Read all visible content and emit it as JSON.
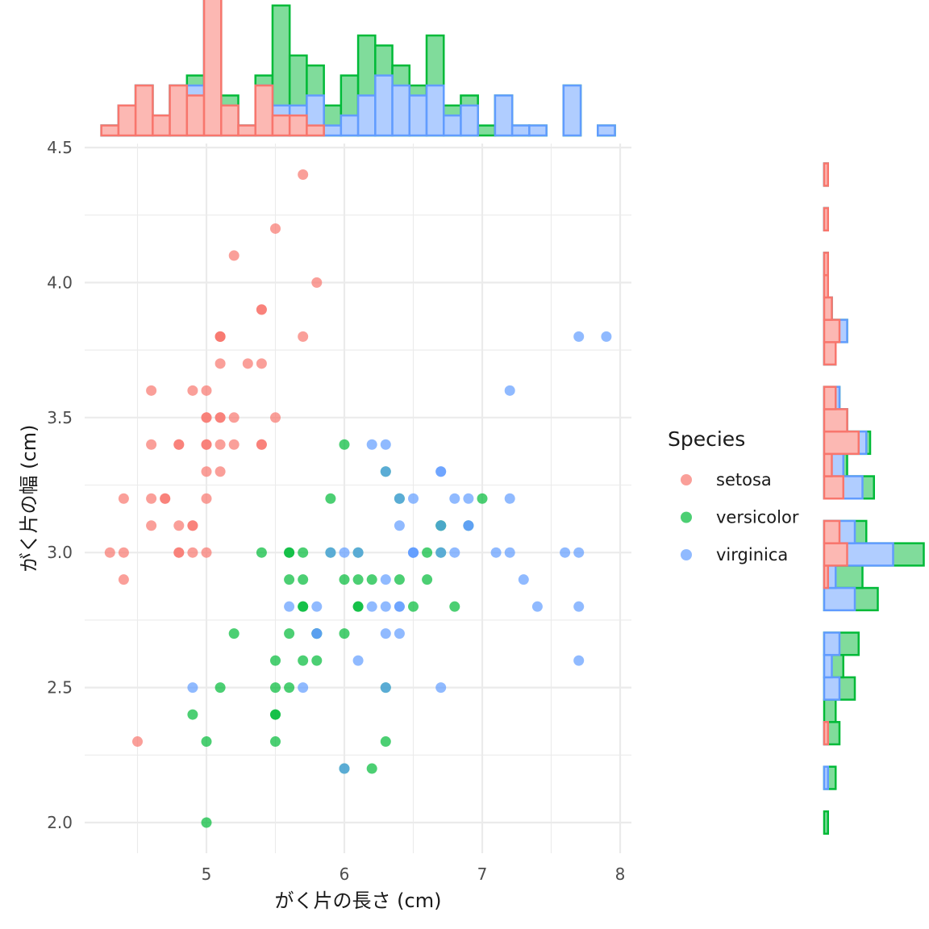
{
  "chart_data": {
    "type": "scatter",
    "subtype": "marginal-histograms",
    "title": "",
    "xlabel": "がく片の長さ (cm)",
    "ylabel": "がく片の幅 (cm)",
    "xlim": [
      4.2,
      8.05
    ],
    "ylim": [
      1.88,
      4.5
    ],
    "x_ticks": [
      5,
      6,
      7,
      8
    ],
    "x_tick_labels": [
      "5",
      "6",
      "7",
      "8"
    ],
    "y_ticks": [
      2.0,
      2.5,
      3.0,
      3.5,
      4.0,
      4.5
    ],
    "y_tick_labels": [
      "2.0",
      "2.5",
      "3.0",
      "3.5",
      "4.0",
      "4.5"
    ],
    "grid": true,
    "legend": {
      "title": "Species",
      "placement": "right",
      "entries": [
        "setosa",
        "versicolor",
        "virginica"
      ]
    },
    "marginal_histograms": {
      "bins": 30,
      "stacked": true,
      "top": "がく片の長さ",
      "right": "がく片の幅"
    },
    "series": [
      {
        "name": "setosa",
        "color": "#F8766D",
        "fill": "#FCB8B3",
        "x": [
          5.1,
          4.9,
          4.7,
          4.6,
          5.0,
          5.4,
          4.6,
          5.0,
          4.4,
          4.9,
          5.4,
          4.8,
          4.8,
          4.3,
          5.8,
          5.7,
          5.4,
          5.1,
          5.7,
          5.1,
          5.4,
          5.1,
          4.6,
          5.1,
          4.8,
          5.0,
          5.0,
          5.2,
          5.2,
          4.7,
          4.8,
          5.4,
          5.2,
          5.5,
          4.9,
          5.0,
          5.5,
          4.9,
          4.4,
          5.1,
          5.0,
          4.5,
          4.4,
          5.0,
          5.1,
          4.8,
          5.1,
          4.6,
          5.3,
          5.0
        ],
        "y": [
          3.5,
          3.0,
          3.2,
          3.1,
          3.6,
          3.9,
          3.4,
          3.4,
          2.9,
          3.1,
          3.7,
          3.4,
          3.0,
          3.0,
          4.0,
          4.4,
          3.9,
          3.5,
          3.8,
          3.8,
          3.4,
          3.7,
          3.6,
          3.3,
          3.4,
          3.0,
          3.4,
          3.5,
          3.4,
          3.2,
          3.1,
          3.4,
          4.1,
          4.2,
          3.1,
          3.2,
          3.5,
          3.6,
          3.0,
          3.4,
          3.5,
          2.3,
          3.2,
          3.5,
          3.8,
          3.0,
          3.8,
          3.2,
          3.7,
          3.3
        ]
      },
      {
        "name": "versicolor",
        "color": "#00BA38",
        "fill": "#80DC9B",
        "x": [
          7.0,
          6.4,
          6.9,
          5.5,
          6.5,
          5.7,
          6.3,
          4.9,
          6.6,
          5.2,
          5.0,
          5.9,
          6.0,
          6.1,
          5.6,
          6.7,
          5.6,
          5.8,
          6.2,
          5.6,
          5.9,
          6.1,
          6.3,
          6.1,
          6.4,
          6.6,
          6.8,
          6.7,
          6.0,
          5.7,
          5.5,
          5.5,
          5.8,
          6.0,
          5.4,
          6.0,
          6.7,
          6.3,
          5.6,
          5.5,
          5.5,
          6.1,
          5.8,
          5.0,
          5.6,
          5.7,
          5.7,
          6.2,
          5.1,
          5.7
        ],
        "y": [
          3.2,
          3.2,
          3.1,
          2.3,
          2.8,
          2.8,
          3.3,
          2.4,
          2.9,
          2.7,
          2.0,
          3.0,
          2.2,
          2.9,
          2.9,
          3.1,
          3.0,
          2.7,
          2.2,
          2.5,
          3.2,
          2.8,
          2.5,
          2.8,
          2.9,
          3.0,
          2.8,
          3.0,
          2.9,
          2.6,
          2.4,
          2.4,
          2.7,
          2.7,
          3.0,
          3.4,
          3.1,
          2.3,
          3.0,
          2.5,
          2.6,
          3.0,
          2.6,
          2.3,
          2.7,
          3.0,
          2.9,
          2.9,
          2.5,
          2.8
        ]
      },
      {
        "name": "virginica",
        "color": "#619CFF",
        "fill": "#B0CDFF",
        "x": [
          6.3,
          5.8,
          7.1,
          6.3,
          6.5,
          7.6,
          4.9,
          7.3,
          6.7,
          7.2,
          6.5,
          6.4,
          6.8,
          5.7,
          5.8,
          6.4,
          6.5,
          7.7,
          7.7,
          6.0,
          6.9,
          5.6,
          7.7,
          6.3,
          6.7,
          7.2,
          6.2,
          6.1,
          6.4,
          7.2,
          7.4,
          7.9,
          6.4,
          6.3,
          6.1,
          7.7,
          6.3,
          6.4,
          6.0,
          6.9,
          6.7,
          6.9,
          5.8,
          6.8,
          6.7,
          6.7,
          6.3,
          6.5,
          6.2,
          5.9
        ],
        "y": [
          3.3,
          2.7,
          3.0,
          2.9,
          3.0,
          3.0,
          2.5,
          2.9,
          2.5,
          3.6,
          3.2,
          2.7,
          3.0,
          2.5,
          2.8,
          3.2,
          3.0,
          3.8,
          2.6,
          2.2,
          3.2,
          2.8,
          2.8,
          2.7,
          3.3,
          3.2,
          2.8,
          3.0,
          2.8,
          3.0,
          2.8,
          3.8,
          2.8,
          2.8,
          2.6,
          3.0,
          3.4,
          3.1,
          3.0,
          3.1,
          3.1,
          3.1,
          2.7,
          3.2,
          3.3,
          3.0,
          2.5,
          3.0,
          3.4,
          3.0
        ]
      }
    ]
  }
}
